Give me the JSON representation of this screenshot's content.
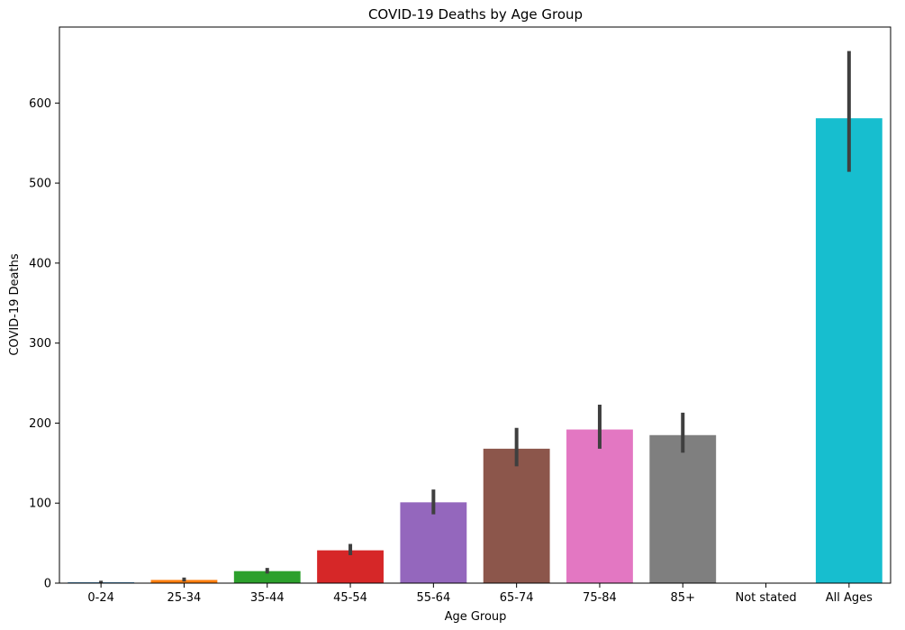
{
  "chart_data": {
    "type": "bar",
    "title": "COVID-19 Deaths by Age Group",
    "xlabel": "Age Group",
    "ylabel": "COVID-19 Deaths",
    "categories": [
      "0-24",
      "25-34",
      "35-44",
      "45-54",
      "55-64",
      "65-74",
      "75-84",
      "85+",
      "Not stated",
      "All Ages"
    ],
    "values": [
      1,
      4,
      15,
      41,
      101,
      168,
      192,
      185,
      0,
      581
    ],
    "error_low": [
      0,
      2,
      12,
      35,
      86,
      146,
      168,
      163,
      0,
      514
    ],
    "error_high": [
      3,
      7,
      19,
      49,
      117,
      194,
      223,
      213,
      0,
      665
    ],
    "colors": [
      "#1f77b4",
      "#ff7f0e",
      "#2ca02c",
      "#d62728",
      "#9467bd",
      "#8c564b",
      "#e377c2",
      "#7f7f7f",
      "#bcbd22",
      "#17becf"
    ],
    "ylim": [
      0,
      695
    ],
    "yticks": [
      0,
      100,
      200,
      300,
      400,
      500,
      600
    ],
    "grid": false,
    "legend": "none"
  }
}
